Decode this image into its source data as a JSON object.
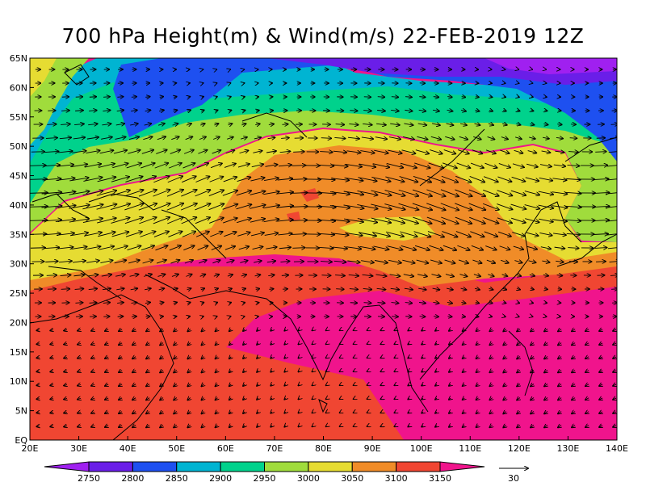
{
  "title": "700 hPa Height(m) & Wind(m/s) 22-FEB-2019 12Z",
  "lat_labels": [
    "EQ",
    "5N",
    "10N",
    "15N",
    "20N",
    "25N",
    "30N",
    "35N",
    "40N",
    "45N",
    "50N",
    "55N",
    "60N",
    "65N"
  ],
  "lon_labels": [
    "20E",
    "30E",
    "40E",
    "50E",
    "60E",
    "70E",
    "80E",
    "90E",
    "100E",
    "110E",
    "120E",
    "130E",
    "140E"
  ],
  "map_extent": {
    "lon_min": 20,
    "lon_max": 140,
    "lat_min": 0,
    "lat_max": 65
  },
  "colorbar": {
    "levels": [
      "2750",
      "2800",
      "2850",
      "2900",
      "2950",
      "3000",
      "3050",
      "3100",
      "3150"
    ],
    "colors": [
      "#a020f0",
      "#6a1ee8",
      "#1e50f0",
      "#00b4d2",
      "#00d28c",
      "#a0dc3c",
      "#e6dc32",
      "#f08c28",
      "#f04632",
      "#f0148c"
    ]
  },
  "wind_reference": {
    "value": "30"
  }
}
